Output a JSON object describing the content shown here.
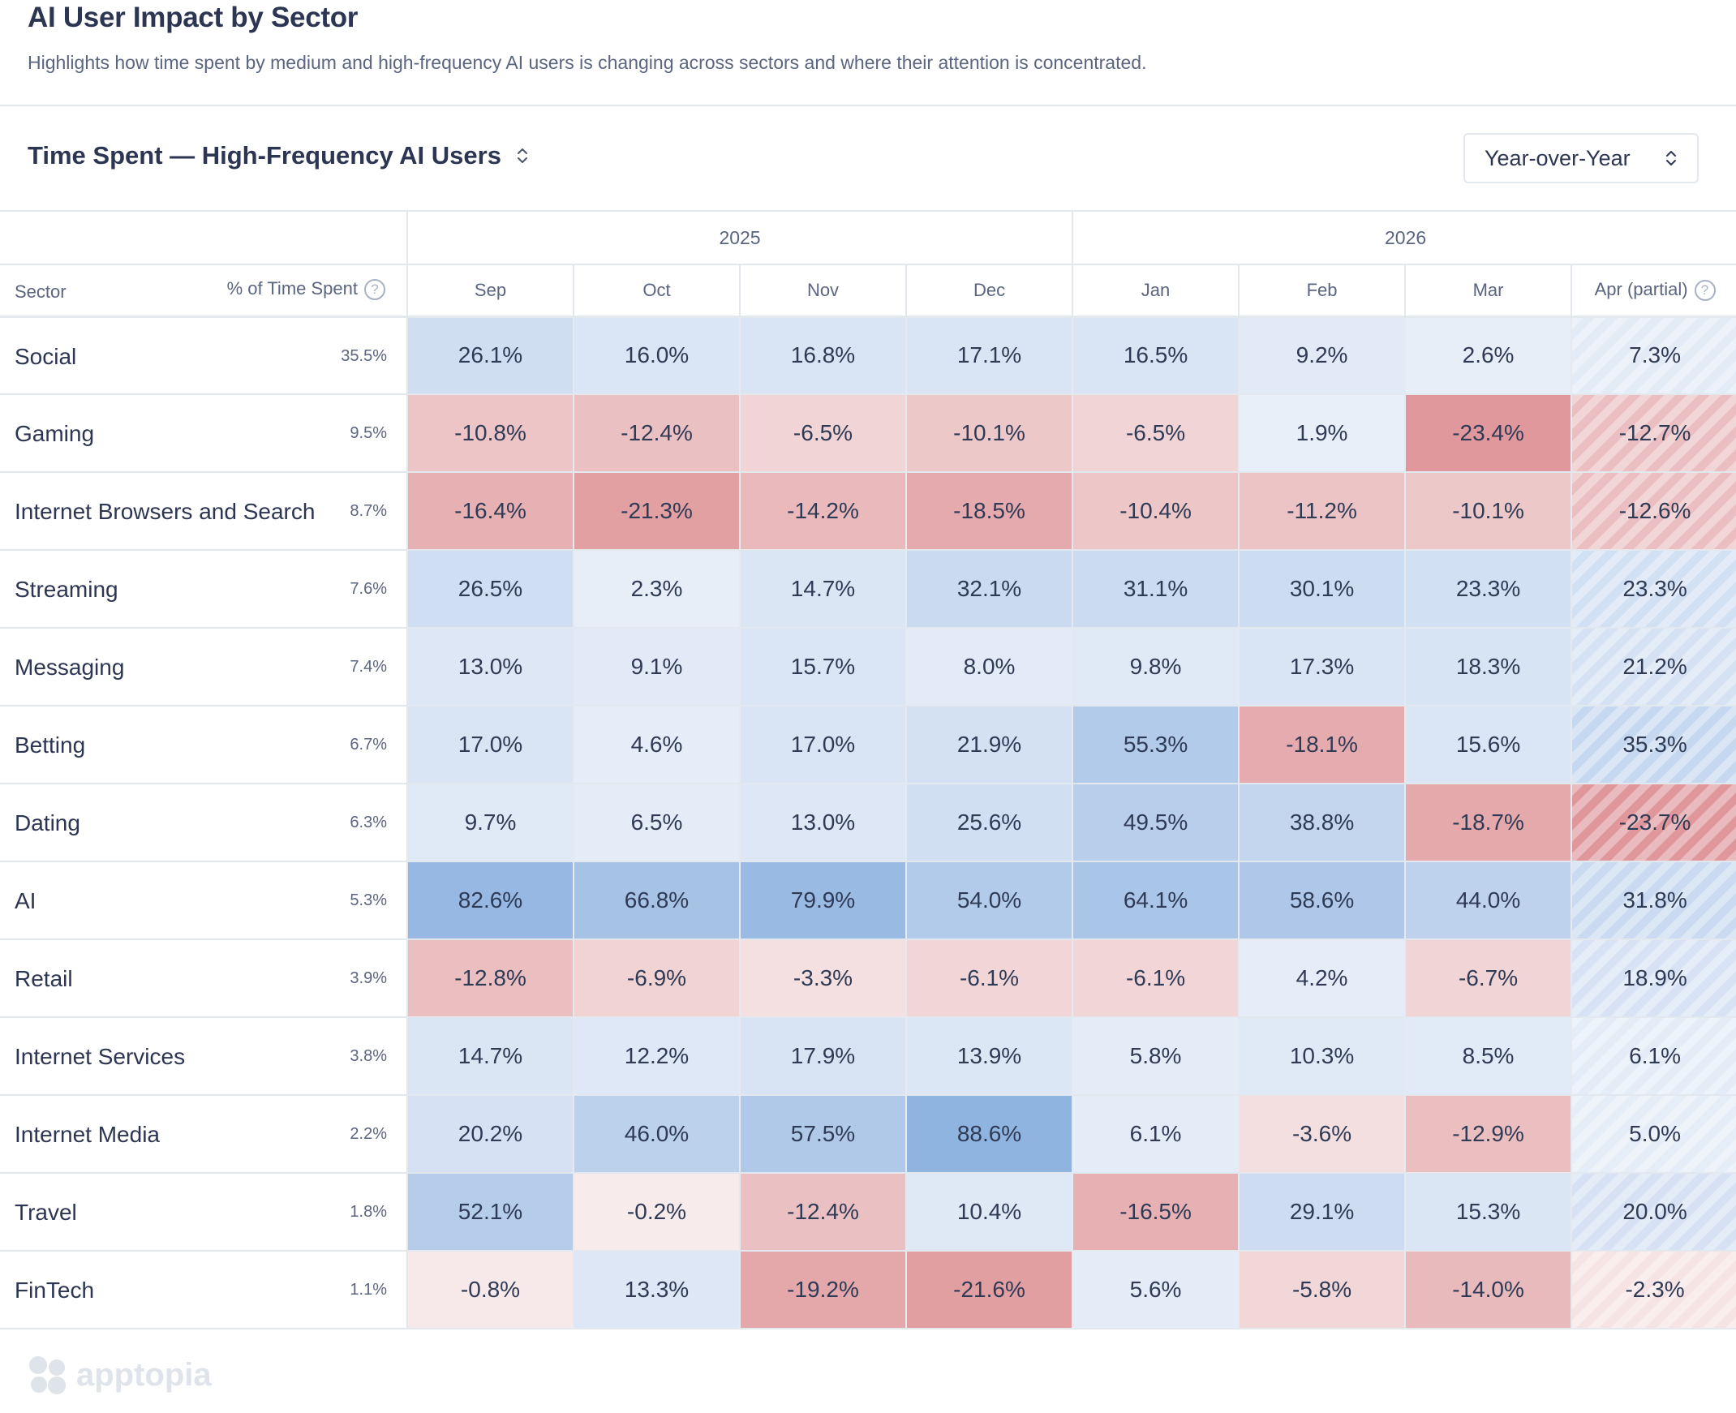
{
  "header": {
    "title": "AI User Impact by Sector",
    "subtitle": "Highlights how time spent by medium and high-frequency AI users is changing across sectors and where their attention is concentrated."
  },
  "section": {
    "title": "Time Spent — High-Frequency AI Users",
    "comparison_select": "Year-over-Year"
  },
  "logo_text": "apptopia",
  "colors": {
    "positive_max": "#8fb3e0",
    "positive_min": "#eaf0f9",
    "negative_max": "#df969a",
    "negative_min": "#f8ecec"
  },
  "chart_data": {
    "type": "heatmap",
    "title": "Time Spent — High-Frequency AI Users",
    "row_header": "Sector",
    "share_header": "% of Time Spent",
    "years": [
      {
        "label": "2025",
        "span": 4
      },
      {
        "label": "2026",
        "span": 4
      }
    ],
    "columns": [
      "Sep",
      "Oct",
      "Nov",
      "Dec",
      "Jan",
      "Feb",
      "Mar",
      "Apr (partial)"
    ],
    "partial_column": 7,
    "rows": [
      {
        "sector": "Social",
        "share": "35.5%",
        "values": [
          26.1,
          16.0,
          16.8,
          17.1,
          16.5,
          9.2,
          2.6,
          7.3
        ]
      },
      {
        "sector": "Gaming",
        "share": "9.5%",
        "values": [
          -10.8,
          -12.4,
          -6.5,
          -10.1,
          -6.5,
          1.9,
          -23.4,
          -12.7
        ]
      },
      {
        "sector": "Internet Browsers and Search",
        "share": "8.7%",
        "values": [
          -16.4,
          -21.3,
          -14.2,
          -18.5,
          -10.4,
          -11.2,
          -10.1,
          -12.6
        ]
      },
      {
        "sector": "Streaming",
        "share": "7.6%",
        "values": [
          26.5,
          2.3,
          14.7,
          32.1,
          31.1,
          30.1,
          23.3,
          23.3
        ]
      },
      {
        "sector": "Messaging",
        "share": "7.4%",
        "values": [
          13.0,
          9.1,
          15.7,
          8.0,
          9.8,
          17.3,
          18.3,
          21.2
        ]
      },
      {
        "sector": "Betting",
        "share": "6.7%",
        "values": [
          17.0,
          4.6,
          17.0,
          21.9,
          55.3,
          -18.1,
          15.6,
          35.3
        ]
      },
      {
        "sector": "Dating",
        "share": "6.3%",
        "values": [
          9.7,
          6.5,
          13.0,
          25.6,
          49.5,
          38.8,
          -18.7,
          -23.7
        ]
      },
      {
        "sector": "AI",
        "share": "5.3%",
        "values": [
          82.6,
          66.8,
          79.9,
          54.0,
          64.1,
          58.6,
          44.0,
          31.8
        ]
      },
      {
        "sector": "Retail",
        "share": "3.9%",
        "values": [
          -12.8,
          -6.9,
          -3.3,
          -6.1,
          -6.1,
          4.2,
          -6.7,
          18.9
        ]
      },
      {
        "sector": "Internet Services",
        "share": "3.8%",
        "values": [
          14.7,
          12.2,
          17.9,
          13.9,
          5.8,
          10.3,
          8.5,
          6.1
        ]
      },
      {
        "sector": "Internet Media",
        "share": "2.2%",
        "values": [
          20.2,
          46.0,
          57.5,
          88.6,
          6.1,
          -3.6,
          -12.9,
          5.0
        ]
      },
      {
        "sector": "Travel",
        "share": "1.8%",
        "values": [
          52.1,
          -0.2,
          -12.4,
          10.4,
          -16.5,
          29.1,
          15.3,
          20.0
        ]
      },
      {
        "sector": "FinTech",
        "share": "1.1%",
        "values": [
          -0.8,
          13.3,
          -19.2,
          -21.6,
          5.6,
          -5.8,
          -14.0,
          -2.3
        ]
      }
    ]
  }
}
